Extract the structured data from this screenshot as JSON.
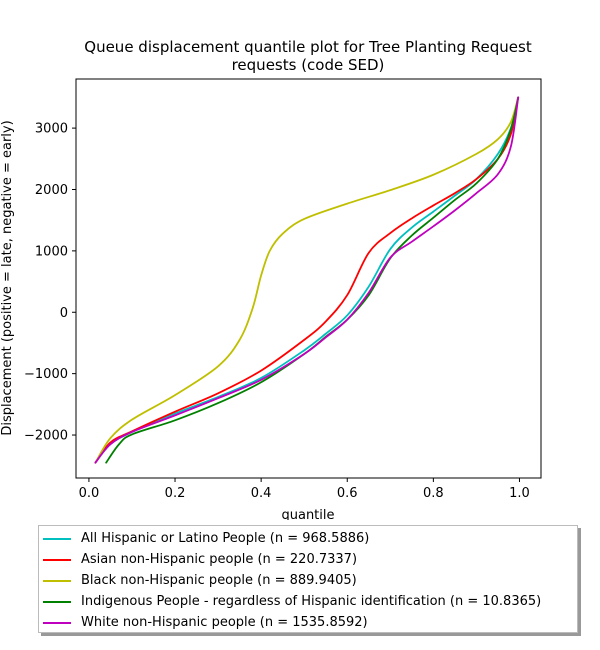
{
  "chart_data": {
    "type": "line",
    "title": "Queue displacement quantile plot for Tree Planting Request requests (code SED)",
    "title_lines": [
      "Queue displacement quantile plot for Tree Planting Request",
      "requests (code SED)"
    ],
    "xlabel": "quantile",
    "ylabel": "Displacement (positive = late, negative = early)",
    "xlim": [
      -0.03,
      1.05
    ],
    "ylim": [
      -2700,
      3800
    ],
    "x_ticks": [
      0.0,
      0.2,
      0.4,
      0.6,
      0.8,
      1.0
    ],
    "x_tick_labels": [
      "0.0",
      "0.2",
      "0.4",
      "0.6",
      "0.8",
      "1.0"
    ],
    "y_ticks": [
      -2000,
      -1000,
      0,
      1000,
      2000,
      3000
    ],
    "y_tick_labels": [
      "−2000",
      "−1000",
      "0",
      "1000",
      "2000",
      "3000"
    ],
    "grid": false,
    "legend_placement": "below plot",
    "series": [
      {
        "name": "All Hispanic or Latino People (n = 968.5886)",
        "color": "#00bfbf",
        "x": [
          0.015,
          0.05,
          0.1,
          0.2,
          0.3,
          0.4,
          0.5,
          0.55,
          0.6,
          0.65,
          0.7,
          0.75,
          0.8,
          0.85,
          0.9,
          0.95,
          0.98,
          0.997
        ],
        "y": [
          -2450,
          -2150,
          -1950,
          -1650,
          -1380,
          -1070,
          -620,
          -350,
          -50,
          420,
          1030,
          1380,
          1640,
          1900,
          2170,
          2580,
          3000,
          3500
        ]
      },
      {
        "name": "Asian non-Hispanic people (n = 220.7337)",
        "color": "#ff0000",
        "x": [
          0.015,
          0.05,
          0.1,
          0.2,
          0.3,
          0.4,
          0.5,
          0.55,
          0.6,
          0.65,
          0.7,
          0.75,
          0.8,
          0.85,
          0.9,
          0.95,
          0.98,
          0.997
        ],
        "y": [
          -2450,
          -2120,
          -1940,
          -1620,
          -1320,
          -950,
          -450,
          -150,
          280,
          970,
          1290,
          1530,
          1740,
          1940,
          2170,
          2500,
          2900,
          3500
        ]
      },
      {
        "name": "Black non-Hispanic people (n = 889.9405)",
        "color": "#bfbf00",
        "x": [
          0.015,
          0.05,
          0.1,
          0.2,
          0.3,
          0.35,
          0.38,
          0.4,
          0.42,
          0.45,
          0.5,
          0.6,
          0.7,
          0.8,
          0.9,
          0.95,
          0.98,
          0.997
        ],
        "y": [
          -2450,
          -2050,
          -1750,
          -1350,
          -880,
          -450,
          60,
          600,
          1000,
          1280,
          1520,
          1770,
          1990,
          2240,
          2580,
          2820,
          3100,
          3500
        ]
      },
      {
        "name": "Indigenous People - regardless of Hispanic identification (n = 10.8365)",
        "color": "#008000",
        "x": [
          0.04,
          0.07,
          0.1,
          0.2,
          0.3,
          0.4,
          0.5,
          0.55,
          0.6,
          0.65,
          0.7,
          0.75,
          0.8,
          0.85,
          0.9,
          0.95,
          0.98,
          0.997
        ],
        "y": [
          -2450,
          -2150,
          -1990,
          -1760,
          -1480,
          -1140,
          -680,
          -400,
          -120,
          280,
          880,
          1250,
          1540,
          1830,
          2100,
          2500,
          2980,
          3500
        ]
      },
      {
        "name": "White non-Hispanic people (n = 1535.8592)",
        "color": "#bf00bf",
        "x": [
          0.015,
          0.05,
          0.1,
          0.2,
          0.3,
          0.4,
          0.5,
          0.55,
          0.6,
          0.65,
          0.7,
          0.75,
          0.8,
          0.85,
          0.9,
          0.95,
          0.98,
          0.997
        ],
        "y": [
          -2450,
          -2150,
          -1950,
          -1680,
          -1400,
          -1100,
          -680,
          -410,
          -120,
          320,
          890,
          1150,
          1400,
          1660,
          1940,
          2250,
          2700,
          3500
        ]
      }
    ]
  }
}
